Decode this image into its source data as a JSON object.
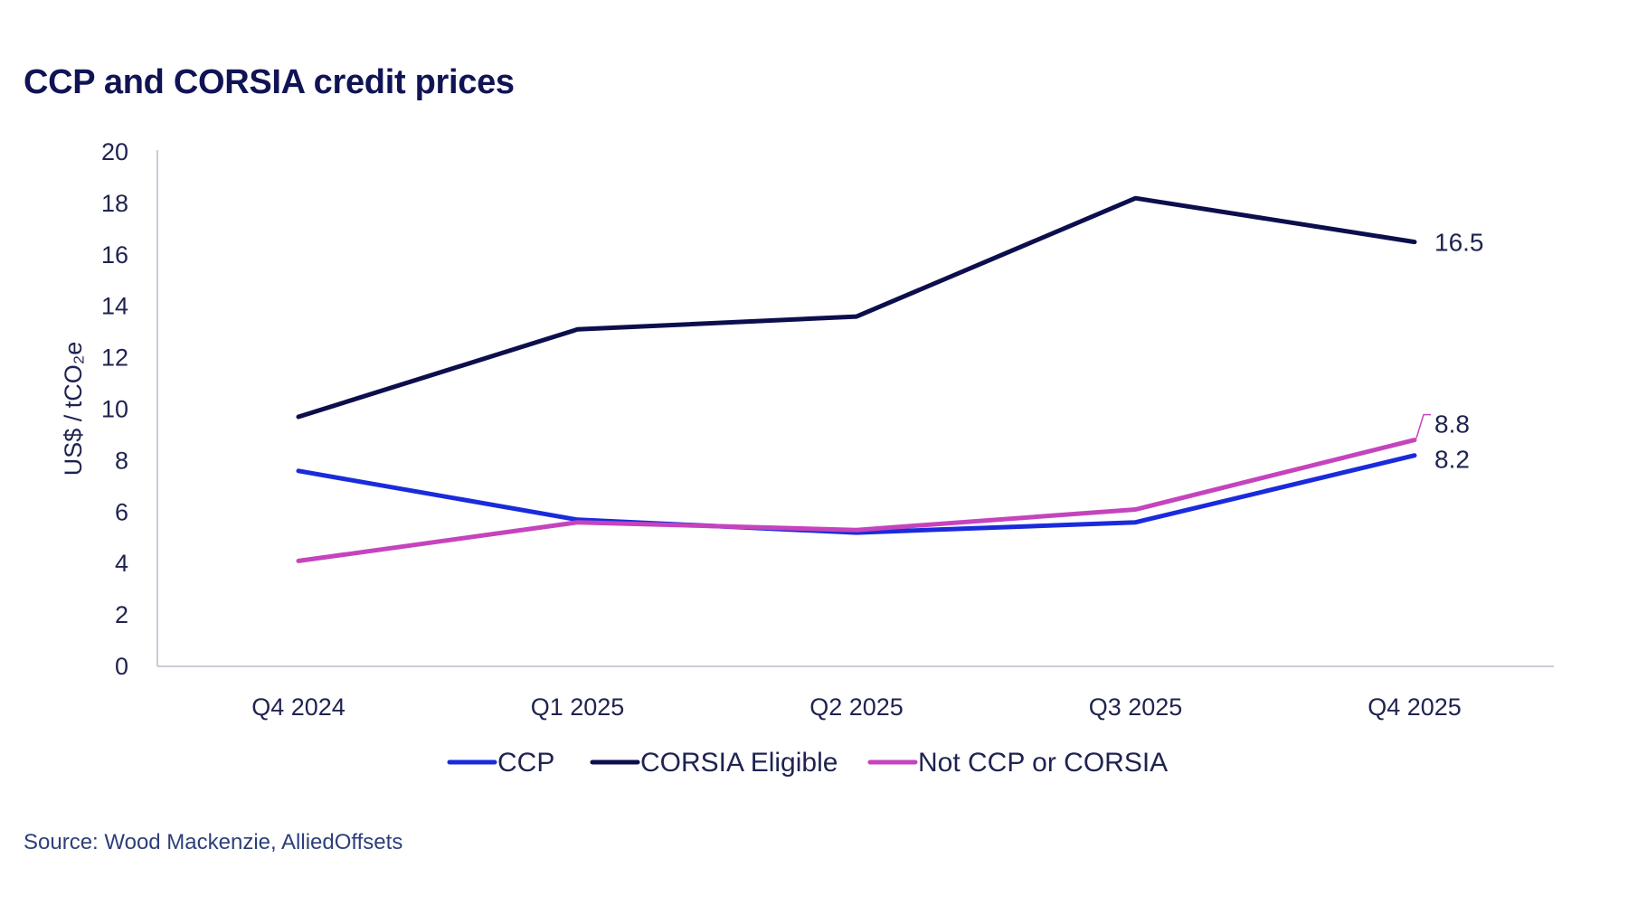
{
  "chart_data": {
    "type": "line",
    "title": "CCP and CORSIA credit prices",
    "ylabel": "US$ / tCO₂e",
    "xlabel": "",
    "categories": [
      "Q4 2024",
      "Q1 2025",
      "Q2 2025",
      "Q3 2025",
      "Q4 2025"
    ],
    "ylim": [
      0,
      20
    ],
    "yticks": [
      0,
      2,
      4,
      6,
      8,
      10,
      12,
      14,
      16,
      18,
      20
    ],
    "grid": false,
    "legend_position": "bottom",
    "series": [
      {
        "name": "CCP",
        "color": "#1a2bdc",
        "values": [
          7.6,
          5.7,
          5.2,
          5.6,
          8.2
        ],
        "end_label": "8.2"
      },
      {
        "name": "CORSIA Eligible",
        "color": "#0c0e4d",
        "values": [
          9.7,
          13.1,
          13.6,
          18.2,
          16.5
        ],
        "end_label": "16.5"
      },
      {
        "name": "Not CCP or CORSIA",
        "color": "#c544bd",
        "values": [
          4.1,
          5.6,
          5.3,
          6.1,
          8.8
        ],
        "end_label": "8.8"
      }
    ],
    "source": "Source: Wood Mackenzie, AlliedOffsets"
  }
}
